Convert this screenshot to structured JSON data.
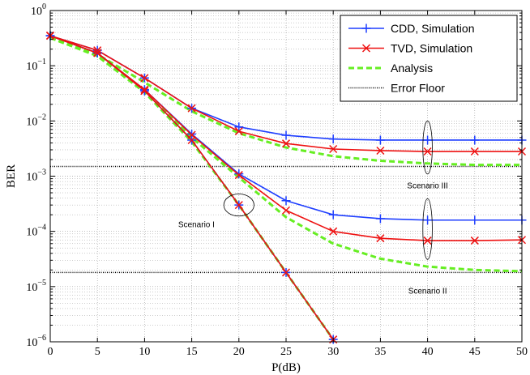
{
  "chart_data": {
    "type": "line",
    "xlabel": "P(dB)",
    "ylabel": "BER",
    "xlim": [
      0,
      50
    ],
    "ylim_log10": [
      -6,
      0
    ],
    "yscale": "log",
    "x_ticks": [
      0,
      5,
      10,
      15,
      20,
      25,
      30,
      35,
      40,
      45,
      50
    ],
    "x_tick_labels": [
      "0",
      "5",
      "10",
      "15",
      "20",
      "25",
      "30",
      "35",
      "40",
      "45",
      "50"
    ],
    "y_ticks": [
      {
        "exp": 0,
        "base": "10",
        "power": "0"
      },
      {
        "exp": -1,
        "base": "10",
        "power": "−1"
      },
      {
        "exp": -2,
        "base": "10",
        "power": "−2"
      },
      {
        "exp": -3,
        "base": "10",
        "power": "−3"
      },
      {
        "exp": -4,
        "base": "10",
        "power": "−4"
      },
      {
        "exp": -5,
        "base": "10",
        "power": "−5"
      },
      {
        "exp": -6,
        "base": "10",
        "power": "−6"
      }
    ],
    "grid": true,
    "legend_position": "top-right",
    "legend": [
      {
        "label": "CDD, Simulation",
        "color": "#1f3fff",
        "style": "solid",
        "marker": "plus"
      },
      {
        "label": "TVD, Simulation",
        "color": "#ee1111",
        "style": "solid",
        "marker": "x"
      },
      {
        "label": "Analysis",
        "color": "#66ee22",
        "style": "dashed",
        "marker": "none"
      },
      {
        "label": "Error Floor",
        "color": "#000000",
        "style": "dotted",
        "marker": "none"
      }
    ],
    "series": [
      {
        "name": "CDD, Simulation",
        "scenario": "Scenario I",
        "color": "#1f3fff",
        "style": "solid",
        "marker": "plus",
        "x": [
          0,
          5,
          10,
          15,
          20,
          25,
          30
        ],
        "y": [
          0.35,
          0.17,
          0.035,
          0.0045,
          0.0003,
          1.8e-05,
          1.1e-06
        ]
      },
      {
        "name": "TVD, Simulation",
        "scenario": "Scenario I",
        "color": "#ee1111",
        "style": "solid",
        "marker": "x",
        "x": [
          0,
          5,
          10,
          15,
          20,
          25,
          30
        ],
        "y": [
          0.35,
          0.17,
          0.035,
          0.0045,
          0.0003,
          1.8e-05,
          1.1e-06
        ]
      },
      {
        "name": "Analysis",
        "scenario": "Scenario I",
        "color": "#66ee22",
        "style": "dashed",
        "marker": "none",
        "x": [
          0,
          5,
          10,
          15,
          20,
          25,
          30
        ],
        "y": [
          0.32,
          0.15,
          0.033,
          0.0042,
          0.0003,
          1.8e-05,
          1.1e-06
        ]
      },
      {
        "name": "CDD, Simulation",
        "scenario": "Scenario II",
        "color": "#1f3fff",
        "style": "solid",
        "marker": "plus",
        "x": [
          0,
          5,
          10,
          15,
          20,
          25,
          30,
          35,
          40,
          45,
          50
        ],
        "y": [
          0.35,
          0.17,
          0.037,
          0.0058,
          0.0011,
          0.00036,
          0.0002,
          0.00017,
          0.00016,
          0.00016,
          0.00016
        ]
      },
      {
        "name": "TVD, Simulation",
        "scenario": "Scenario II",
        "color": "#ee1111",
        "style": "solid",
        "marker": "x",
        "x": [
          0,
          5,
          10,
          15,
          20,
          25,
          30,
          35,
          40,
          45,
          50
        ],
        "y": [
          0.35,
          0.17,
          0.037,
          0.0056,
          0.00105,
          0.00024,
          0.0001,
          7.5e-05,
          6.8e-05,
          6.8e-05,
          7e-05
        ]
      },
      {
        "name": "Analysis",
        "scenario": "Scenario II",
        "color": "#66ee22",
        "style": "dashed",
        "marker": "none",
        "x": [
          0,
          5,
          10,
          15,
          20,
          25,
          30,
          35,
          40,
          45,
          50
        ],
        "y": [
          0.32,
          0.15,
          0.034,
          0.005,
          0.00095,
          0.00018,
          6e-05,
          3.2e-05,
          2.3e-05,
          2e-05,
          1.9e-05
        ]
      },
      {
        "name": "CDD, Simulation",
        "scenario": "Scenario III",
        "color": "#1f3fff",
        "style": "solid",
        "marker": "plus",
        "x": [
          0,
          5,
          10,
          15,
          20,
          25,
          30,
          35,
          40,
          45,
          50
        ],
        "y": [
          0.35,
          0.19,
          0.06,
          0.017,
          0.0078,
          0.0055,
          0.0047,
          0.0045,
          0.0045,
          0.0045,
          0.0045
        ]
      },
      {
        "name": "TVD, Simulation",
        "scenario": "Scenario III",
        "color": "#ee1111",
        "style": "solid",
        "marker": "x",
        "x": [
          0,
          5,
          10,
          15,
          20,
          25,
          30,
          35,
          40,
          45,
          50
        ],
        "y": [
          0.35,
          0.19,
          0.06,
          0.017,
          0.0065,
          0.0039,
          0.0031,
          0.0029,
          0.0028,
          0.0028,
          0.0028
        ]
      },
      {
        "name": "Analysis",
        "scenario": "Scenario III",
        "color": "#66ee22",
        "style": "dashed",
        "marker": "none",
        "x": [
          0,
          5,
          10,
          15,
          20,
          25,
          30,
          35,
          40,
          45,
          50
        ],
        "y": [
          0.32,
          0.16,
          0.05,
          0.015,
          0.006,
          0.0033,
          0.0023,
          0.0019,
          0.0017,
          0.0016,
          0.0016
        ]
      },
      {
        "name": "Error Floor",
        "scenario": "Scenario II",
        "color": "#000000",
        "style": "dotted",
        "marker": "none",
        "x": [
          0,
          50
        ],
        "y": [
          1.8e-05,
          1.8e-05
        ]
      },
      {
        "name": "Error Floor",
        "scenario": "Scenario III",
        "color": "#000000",
        "style": "dotted",
        "marker": "none",
        "x": [
          0,
          50
        ],
        "y": [
          0.0015,
          0.0015
        ]
      }
    ],
    "annotations": [
      {
        "text": "Scenario I",
        "x": 15.5,
        "y": 0.00012
      },
      {
        "text": "Scenario II",
        "x": 40,
        "y": 7.5e-06
      },
      {
        "text": "Scenario III",
        "x": 40,
        "y": 0.0006
      }
    ],
    "ellipses": [
      {
        "scenario": "Scenario I",
        "cx": 20,
        "cy": 0.0003,
        "rx_data": 1.6,
        "ry_decades": 0.2
      },
      {
        "scenario": "Scenario II",
        "cx": 40,
        "cy": 0.00011,
        "rx_data": 0.5,
        "ry_decades": 0.55
      },
      {
        "scenario": "Scenario III",
        "cx": 40,
        "cy": 0.0033,
        "rx_data": 0.5,
        "ry_decades": 0.48
      }
    ]
  }
}
